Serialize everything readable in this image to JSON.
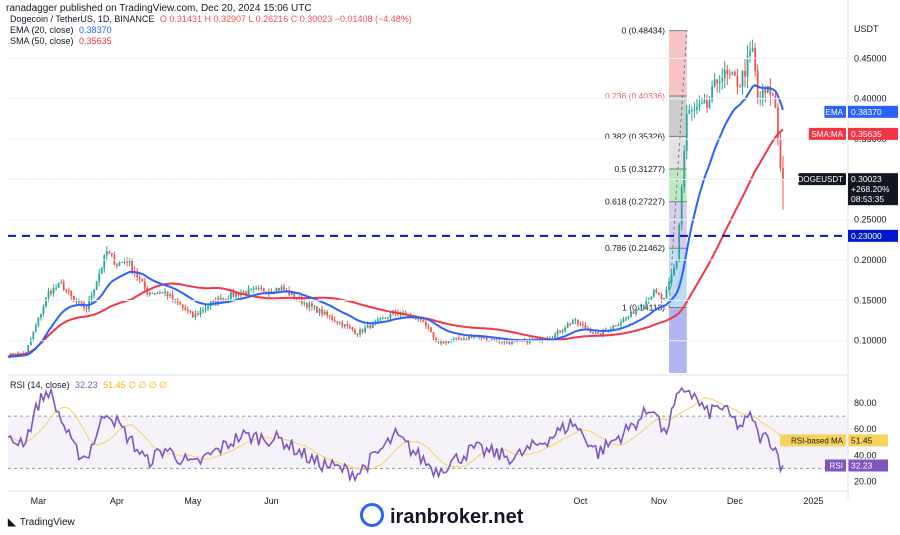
{
  "header": {
    "publisher": "ranadagger published on TradingView.com, Dec 20, 2024 15:06 UTC",
    "symbol": "Dogecoin / TetherUS, 1D, BINANCE",
    "ohlc": "O 0.31431  H 0.32907  L 0.26216  C 0.30023  −0.01408 (−4.48%)",
    "currency": "USDT"
  },
  "legends": {
    "ema": {
      "label": "EMA (20, close)",
      "value": "0.38370"
    },
    "sma": {
      "label": "SMA (50, close)",
      "value": "0.35635"
    },
    "rsi": {
      "label": "RSI (14, close)",
      "value": "32.23",
      "extra": "51.45  ∅  ∅  ∅  ∅"
    }
  },
  "colors": {
    "up": "#26a69a",
    "down": "#ef5350",
    "ema": "#2962ff",
    "sma": "#f23645",
    "rsi": "#7e57c2",
    "rsi_ma": "#f7d35b",
    "support": "#0019c9",
    "price_tag": "#131722"
  },
  "chart_data": [
    {
      "type": "candlestick",
      "title": "Dogecoin / TetherUS, 1D, BINANCE",
      "ylim": [
        0.06,
        0.5
      ],
      "y_ticks": [
        "0.45000",
        "0.40000",
        "0.35000",
        "0.30000",
        "0.25000",
        "0.20000",
        "0.15000",
        "0.10000"
      ],
      "x_ticks": [
        "Mar",
        "Apr",
        "May",
        "Jun",
        "Oct",
        "Nov",
        "Dec",
        "2025"
      ],
      "close_anchors": [
        [
          "2024-02-18",
          0.082
        ],
        [
          "2024-02-25",
          0.085
        ],
        [
          "2024-02-28",
          0.11
        ],
        [
          "2024-03-05",
          0.16
        ],
        [
          "2024-03-10",
          0.17
        ],
        [
          "2024-03-15",
          0.15
        ],
        [
          "2024-03-20",
          0.14
        ],
        [
          "2024-03-28",
          0.21
        ],
        [
          "2024-04-01",
          0.195
        ],
        [
          "2024-04-05",
          0.2
        ],
        [
          "2024-04-13",
          0.16
        ],
        [
          "2024-04-20",
          0.16
        ],
        [
          "2024-05-01",
          0.13
        ],
        [
          "2024-05-10",
          0.15
        ],
        [
          "2024-05-20",
          0.16
        ],
        [
          "2024-06-05",
          0.165
        ],
        [
          "2024-06-15",
          0.145
        ],
        [
          "2024-07-05",
          0.11
        ],
        [
          "2024-07-20",
          0.135
        ],
        [
          "2024-07-31",
          0.125
        ],
        [
          "2024-08-05",
          0.097
        ],
        [
          "2024-08-20",
          0.105
        ],
        [
          "2024-09-05",
          0.097
        ],
        [
          "2024-09-20",
          0.105
        ],
        [
          "2024-09-28",
          0.125
        ],
        [
          "2024-10-08",
          0.107
        ],
        [
          "2024-10-20",
          0.13
        ],
        [
          "2024-10-30",
          0.16
        ],
        [
          "2024-11-03",
          0.15
        ],
        [
          "2024-11-08",
          0.2
        ],
        [
          "2024-11-12",
          0.38
        ],
        [
          "2024-11-20",
          0.39
        ],
        [
          "2024-11-25",
          0.43
        ],
        [
          "2024-12-03",
          0.42
        ],
        [
          "2024-12-08",
          0.46
        ],
        [
          "2024-12-10",
          0.4
        ],
        [
          "2024-12-15",
          0.41
        ],
        [
          "2024-12-17",
          0.39
        ],
        [
          "2024-12-19",
          0.3143
        ],
        [
          "2024-12-20",
          0.30023
        ]
      ],
      "last_candle": {
        "open": 0.31431,
        "high": 0.32907,
        "low": 0.26216,
        "close": 0.30023
      },
      "support_level": 0.23,
      "price_tags": [
        {
          "text": "EMA",
          "value": "0.38370",
          "y": 0.3837
        },
        {
          "text": "SMA:MA",
          "value": "0.35635",
          "y": 0.35635
        },
        {
          "text": "DOGEUSDT",
          "value": "0.30023",
          "sub1": "+268.20%",
          "sub2": "08:53:35",
          "y": 0.30023
        },
        {
          "text": "",
          "value": "0.23000",
          "y": 0.23
        }
      ],
      "fibonacci": {
        "top": 0.48434,
        "bottom": 0.14113,
        "levels": [
          {
            "ratio": 0,
            "label": "0 (0.48434)",
            "price": 0.48434
          },
          {
            "ratio": 0.236,
            "label": "0.236 (0.40336)",
            "price": 0.40336
          },
          {
            "ratio": 0.382,
            "label": "0.382 (0.35326)",
            "price": 0.35326
          },
          {
            "ratio": 0.5,
            "label": "0.5 (0.31277)",
            "price": 0.31277
          },
          {
            "ratio": 0.618,
            "label": "0.618 (0.27227)",
            "price": 0.27227
          },
          {
            "ratio": 0.786,
            "label": "0.786 (0.21462)",
            "price": 0.21462
          },
          {
            "ratio": 1,
            "label": "1 (0.14113)",
            "price": 0.14113
          }
        ]
      }
    },
    {
      "type": "line",
      "title": "RSI (14, close)",
      "ylim": [
        15,
        100
      ],
      "y_ticks": [
        "80.00",
        "60.00",
        "40.00",
        "20.00"
      ],
      "levels": [
        70,
        30
      ],
      "rsi_anchors": [
        [
          "2024-02-18",
          50
        ],
        [
          "2024-02-25",
          52
        ],
        [
          "2024-03-01",
          80
        ],
        [
          "2024-03-05",
          90
        ],
        [
          "2024-03-15",
          45
        ],
        [
          "2024-03-20",
          38
        ],
        [
          "2024-03-28",
          75
        ],
        [
          "2024-04-05",
          55
        ],
        [
          "2024-04-13",
          35
        ],
        [
          "2024-04-20",
          45
        ],
        [
          "2024-05-01",
          32
        ],
        [
          "2024-05-20",
          55
        ],
        [
          "2024-06-05",
          52
        ],
        [
          "2024-06-18",
          35
        ],
        [
          "2024-07-05",
          26
        ],
        [
          "2024-07-20",
          55
        ],
        [
          "2024-08-05",
          28
        ],
        [
          "2024-08-20",
          45
        ],
        [
          "2024-09-05",
          38
        ],
        [
          "2024-09-20",
          55
        ],
        [
          "2024-09-28",
          65
        ],
        [
          "2024-10-08",
          42
        ],
        [
          "2024-10-20",
          60
        ],
        [
          "2024-10-30",
          78
        ],
        [
          "2024-11-03",
          55
        ],
        [
          "2024-11-08",
          82
        ],
        [
          "2024-11-12",
          92
        ],
        [
          "2024-11-20",
          72
        ],
        [
          "2024-11-25",
          78
        ],
        [
          "2024-12-03",
          62
        ],
        [
          "2024-12-08",
          70
        ],
        [
          "2024-12-10",
          55
        ],
        [
          "2024-12-15",
          52
        ],
        [
          "2024-12-17",
          45
        ],
        [
          "2024-12-19",
          34
        ],
        [
          "2024-12-20",
          32.23
        ]
      ],
      "price_tags": [
        {
          "text": "RSI-based MA",
          "value": "51.45"
        },
        {
          "text": "RSI",
          "value": "32.23"
        }
      ]
    }
  ],
  "footer": {
    "logo": "TradingView",
    "watermark": "iranbroker.net"
  }
}
